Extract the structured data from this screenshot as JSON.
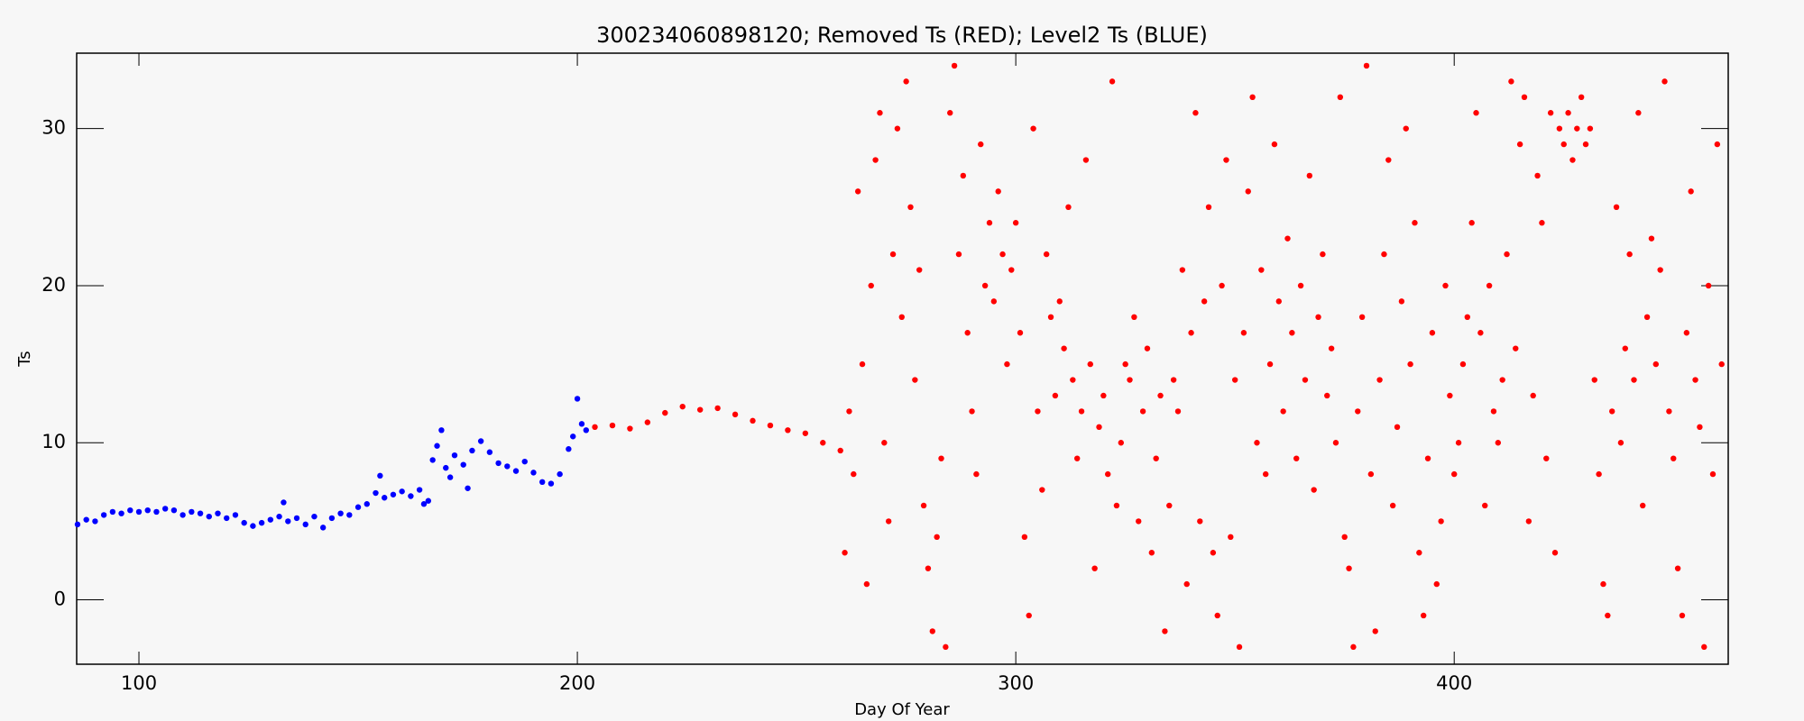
{
  "chart_data": {
    "type": "scatter",
    "title": "300234060898120; Removed Ts (RED); Level2 Ts (BLUE)",
    "x_label": "Day Of Year",
    "y_label": "Ts",
    "xlim": [
      85.8,
      462.5
    ],
    "ylim": [
      -4.1,
      34.8
    ],
    "xticks": [
      100,
      200,
      300,
      400
    ],
    "yticks": [
      0,
      10,
      20,
      30
    ],
    "series": [
      {
        "name": "Level2 Ts",
        "color": "#0000ff",
        "x": [
          86,
          88,
          90,
          92,
          94,
          96,
          98,
          100,
          102,
          104,
          106,
          108,
          110,
          112,
          114,
          116,
          118,
          120,
          122,
          124,
          126,
          128,
          130,
          132,
          133,
          134,
          136,
          138,
          140,
          142,
          144,
          146,
          148,
          150,
          152,
          154,
          155,
          156,
          158,
          160,
          162,
          164,
          165,
          166,
          167,
          168,
          169,
          170,
          171,
          172,
          174,
          175,
          176,
          178,
          180,
          182,
          184,
          186,
          188,
          190,
          192,
          194,
          196,
          198,
          199,
          200,
          201,
          202
        ],
        "values": [
          4.8,
          5.1,
          5.0,
          5.4,
          5.6,
          5.5,
          5.7,
          5.6,
          5.7,
          5.6,
          5.8,
          5.7,
          5.4,
          5.6,
          5.5,
          5.3,
          5.5,
          5.2,
          5.4,
          4.9,
          4.7,
          4.9,
          5.1,
          5.3,
          6.2,
          5.0,
          5.2,
          4.8,
          5.3,
          4.6,
          5.2,
          5.5,
          5.4,
          5.9,
          6.1,
          6.8,
          7.9,
          6.5,
          6.7,
          6.9,
          6.6,
          7.0,
          6.1,
          6.3,
          8.9,
          9.8,
          10.8,
          8.4,
          7.8,
          9.2,
          8.6,
          7.1,
          9.5,
          10.1,
          9.4,
          8.7,
          8.5,
          8.2,
          8.8,
          8.1,
          7.5,
          7.4,
          8.0,
          9.6,
          10.4,
          12.8,
          11.2,
          10.8
        ]
      },
      {
        "name": "Removed Ts",
        "color": "#ff0000",
        "x": [
          204,
          208,
          212,
          216,
          220,
          224,
          228,
          232,
          236,
          240,
          244,
          248,
          252,
          256,
          260,
          261,
          262,
          263,
          264,
          265,
          266,
          267,
          268,
          269,
          270,
          271,
          272,
          273,
          274,
          275,
          276,
          277,
          278,
          279,
          280,
          281,
          282,
          283,
          284,
          285,
          286,
          287,
          288,
          289,
          290,
          291,
          292,
          293,
          294,
          295,
          296,
          297,
          298,
          299,
          300,
          301,
          302,
          303,
          304,
          305,
          306,
          307,
          308,
          309,
          310,
          311,
          312,
          313,
          314,
          315,
          316,
          317,
          318,
          319,
          320,
          321,
          322,
          323,
          324,
          325,
          326,
          327,
          328,
          329,
          330,
          331,
          332,
          333,
          334,
          335,
          336,
          337,
          338,
          339,
          340,
          341,
          342,
          343,
          344,
          345,
          346,
          347,
          348,
          349,
          350,
          351,
          352,
          353,
          354,
          355,
          356,
          357,
          358,
          359,
          360,
          361,
          362,
          363,
          364,
          365,
          366,
          367,
          368,
          369,
          370,
          371,
          372,
          373,
          374,
          375,
          376,
          377,
          378,
          379,
          380,
          381,
          382,
          383,
          384,
          385,
          386,
          387,
          388,
          389,
          390,
          391,
          392,
          393,
          394,
          395,
          396,
          397,
          398,
          399,
          400,
          401,
          402,
          403,
          404,
          405,
          406,
          407,
          408,
          409,
          410,
          411,
          412,
          413,
          414,
          415,
          416,
          417,
          418,
          419,
          420,
          421,
          422,
          423,
          424,
          425,
          426,
          427,
          428,
          429,
          430,
          431,
          432,
          433,
          434,
          435,
          436,
          437,
          438,
          439,
          440,
          441,
          442,
          443,
          444,
          445,
          446,
          447,
          448,
          449,
          450,
          451,
          452,
          453,
          454,
          455,
          456,
          457,
          458,
          459,
          460,
          461
        ],
        "values": [
          11.0,
          11.1,
          10.9,
          11.3,
          11.9,
          12.3,
          12.1,
          12.2,
          11.8,
          11.4,
          11.1,
          10.8,
          10.6,
          10.0,
          9.5,
          3,
          12,
          8,
          26,
          15,
          1,
          20,
          28,
          31,
          10,
          5,
          22,
          30,
          18,
          33,
          25,
          14,
          21,
          6,
          2,
          -2,
          4,
          9,
          -3,
          31,
          34,
          22,
          27,
          17,
          12,
          8,
          29,
          20,
          24,
          19,
          26,
          22,
          15,
          21,
          24,
          17,
          4,
          -1,
          30,
          12,
          7,
          22,
          18,
          13,
          19,
          16,
          25,
          14,
          9,
          12,
          28,
          15,
          2,
          11,
          13,
          8,
          33,
          6,
          10,
          15,
          14,
          18,
          5,
          12,
          16,
          3,
          9,
          13,
          -2,
          6,
          14,
          12,
          21,
          1,
          17,
          31,
          5,
          19,
          25,
          3,
          -1,
          20,
          28,
          4,
          14,
          -3,
          17,
          26,
          32,
          10,
          21,
          8,
          15,
          29,
          19,
          12,
          23,
          17,
          9,
          20,
          14,
          27,
          7,
          18,
          22,
          13,
          16,
          10,
          32,
          4,
          2,
          -3,
          12,
          18,
          34,
          8,
          -2,
          14,
          22,
          28,
          6,
          11,
          19,
          30,
          15,
          24,
          3,
          -1,
          9,
          17,
          1,
          5,
          20,
          13,
          8,
          10,
          15,
          18,
          24,
          31,
          17,
          6,
          20,
          12,
          10,
          14,
          22,
          33,
          16,
          29,
          32,
          5,
          13,
          27,
          24,
          9,
          31,
          3,
          30,
          29,
          31,
          28,
          30,
          32,
          29,
          30,
          14,
          8,
          1,
          -1,
          12,
          25,
          10,
          16,
          22,
          14,
          31,
          6,
          18,
          23,
          15,
          21,
          33,
          12,
          9,
          2,
          -1,
          17,
          26,
          14,
          11,
          -3,
          20,
          8,
          29,
          15
        ]
      }
    ]
  }
}
